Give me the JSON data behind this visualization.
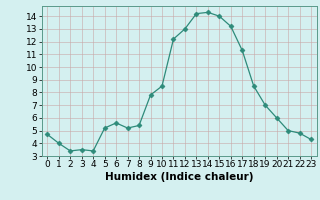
{
  "x": [
    0,
    1,
    2,
    3,
    4,
    5,
    6,
    7,
    8,
    9,
    10,
    11,
    12,
    13,
    14,
    15,
    16,
    17,
    18,
    19,
    20,
    21,
    22,
    23
  ],
  "y": [
    4.7,
    4.0,
    3.4,
    3.5,
    3.4,
    5.2,
    5.6,
    5.2,
    5.4,
    7.8,
    8.5,
    12.2,
    13.0,
    14.2,
    14.3,
    14.0,
    13.2,
    11.3,
    8.5,
    7.0,
    6.0,
    5.0,
    4.8,
    4.3
  ],
  "line_color": "#2e8b7a",
  "marker": "D",
  "marker_size": 2.5,
  "bg_color": "#d4f0f0",
  "grid_major_color": "#c0dede",
  "grid_minor_color": "#dceaea",
  "xlabel": "Humidex (Indice chaleur)",
  "ylim": [
    3,
    14.8
  ],
  "xlim": [
    -0.5,
    23.5
  ],
  "yticks": [
    3,
    4,
    5,
    6,
    7,
    8,
    9,
    10,
    11,
    12,
    13,
    14
  ],
  "xticks": [
    0,
    1,
    2,
    3,
    4,
    5,
    6,
    7,
    8,
    9,
    10,
    11,
    12,
    13,
    14,
    15,
    16,
    17,
    18,
    19,
    20,
    21,
    22,
    23
  ],
  "tick_fontsize": 6.5,
  "xlabel_fontsize": 7.5
}
